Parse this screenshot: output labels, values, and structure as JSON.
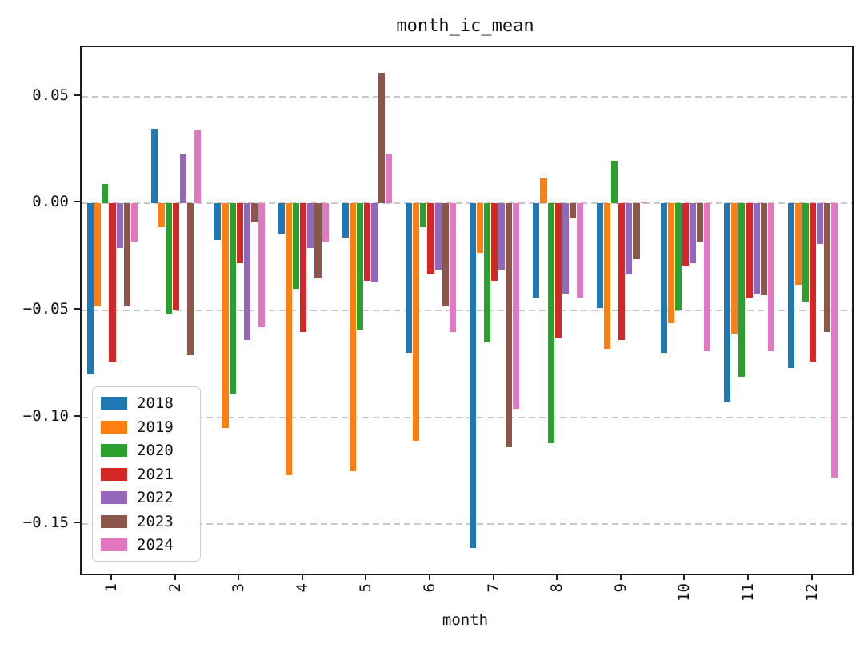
{
  "chart_data": {
    "type": "bar",
    "title": "month_ic_mean",
    "xlabel": "month",
    "ylabel": "",
    "categories": [
      "1",
      "2",
      "3",
      "4",
      "5",
      "6",
      "7",
      "8",
      "9",
      "10",
      "11",
      "12"
    ],
    "series": [
      {
        "name": "2018",
        "color": "#1f77b4",
        "values": [
          -0.08,
          0.035,
          -0.017,
          -0.014,
          -0.016,
          -0.07,
          -0.161,
          -0.044,
          -0.049,
          -0.07,
          -0.093,
          -0.077
        ]
      },
      {
        "name": "2019",
        "color": "#ff7f0e",
        "values": [
          -0.048,
          -0.011,
          -0.105,
          -0.127,
          -0.125,
          -0.111,
          -0.023,
          0.012,
          -0.068,
          -0.056,
          -0.061,
          -0.038
        ]
      },
      {
        "name": "2020",
        "color": "#2ca02c",
        "values": [
          0.009,
          -0.052,
          -0.089,
          -0.04,
          -0.059,
          -0.011,
          -0.065,
          -0.112,
          0.02,
          -0.05,
          -0.081,
          -0.046
        ]
      },
      {
        "name": "2021",
        "color": "#d62728",
        "values": [
          -0.074,
          -0.05,
          -0.028,
          -0.06,
          -0.036,
          -0.033,
          -0.036,
          -0.063,
          -0.064,
          -0.029,
          -0.044,
          -0.074
        ]
      },
      {
        "name": "2022",
        "color": "#9467bd",
        "values": [
          -0.021,
          0.023,
          -0.064,
          -0.021,
          -0.037,
          -0.031,
          -0.031,
          -0.042,
          -0.033,
          -0.028,
          -0.042,
          -0.019
        ]
      },
      {
        "name": "2023",
        "color": "#8c564b",
        "values": [
          -0.048,
          -0.071,
          -0.009,
          -0.035,
          0.061,
          -0.048,
          -0.114,
          -0.007,
          -0.026,
          -0.018,
          -0.043,
          -0.06
        ]
      },
      {
        "name": "2024",
        "color": "#e377c2",
        "values": [
          -0.018,
          0.034,
          -0.058,
          -0.018,
          0.023,
          -0.06,
          -0.096,
          -0.044,
          0.001,
          -0.069,
          -0.069,
          -0.128
        ]
      }
    ],
    "yticks": [
      0.05,
      0.0,
      -0.05,
      -0.1,
      -0.15
    ],
    "ytick_labels": [
      "0.05",
      "0.00",
      "−0.05",
      "−0.10",
      "−0.15"
    ],
    "ylim": [
      -0.173,
      0.073
    ],
    "grid": "horizontal-dashed",
    "grid_color": "#c9c9c9",
    "spine_color": "#1c1c1c",
    "background_color": "#ffffff",
    "legend_position": "lower-left",
    "legend_entries": [
      "2018",
      "2019",
      "2020",
      "2021",
      "2022",
      "2023",
      "2024"
    ]
  }
}
